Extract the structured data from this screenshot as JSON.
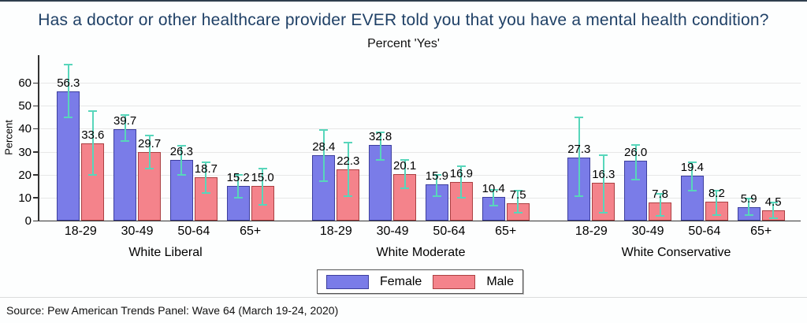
{
  "chart_data": {
    "type": "bar",
    "title": "Has a doctor or other healthcare provider EVER told you that you have a mental health condition?",
    "subtitle": "Percent 'Yes'",
    "ylabel": "Percent",
    "yticks": [
      0,
      10,
      20,
      30,
      40,
      50,
      60
    ],
    "ylim": [
      0,
      72
    ],
    "grid": true,
    "legend_position": "bottom-center",
    "age_categories": [
      "18-29",
      "30-49",
      "50-64",
      "65+"
    ],
    "groups": [
      {
        "label": "White Liberal",
        "series": [
          {
            "name": "Female",
            "values": [
              56.3,
              39.7,
              26.3,
              15.2
            ],
            "ci": [
              [
                45,
                68
              ],
              [
                34.5,
                46
              ],
              [
                20,
                32.5
              ],
              [
                10,
                20
              ]
            ]
          },
          {
            "name": "Male",
            "values": [
              33.6,
              29.7,
              18.7,
              15.0
            ],
            "ci": [
              [
                20,
                47.5
              ],
              [
                22.5,
                37
              ],
              [
                12,
                25.5
              ],
              [
                7,
                22.5
              ]
            ]
          }
        ]
      },
      {
        "label": "White Moderate",
        "series": [
          {
            "name": "Female",
            "values": [
              28.4,
              32.8,
              15.9,
              10.4
            ],
            "ci": [
              [
                17,
                39.5
              ],
              [
                26.5,
                38.5
              ],
              [
                10.5,
                20
              ],
              [
                6.5,
                13.5
              ]
            ]
          },
          {
            "name": "Male",
            "values": [
              22.3,
              20.1,
              16.9,
              7.5
            ],
            "ci": [
              [
                10.5,
                34
              ],
              [
                14,
                26.5
              ],
              [
                10,
                23.5
              ],
              [
                3.5,
                13
              ]
            ]
          }
        ]
      },
      {
        "label": "White Conservative",
        "series": [
          {
            "name": "Female",
            "values": [
              27.3,
              26.0,
              19.4,
              5.9
            ],
            "ci": [
              [
                10.5,
                45
              ],
              [
                18,
                33
              ],
              [
                13,
                25.5
              ],
              [
                2.5,
                9.5
              ]
            ]
          },
          {
            "name": "Male",
            "values": [
              16.3,
              7.8,
              8.2,
              4.5
            ],
            "ci": [
              [
                3.5,
                28.5
              ],
              [
                2,
                11.5
              ],
              [
                2.5,
                13
              ],
              [
                1,
                8
              ]
            ]
          }
        ]
      }
    ],
    "series_colors": {
      "Female": {
        "fill": "#7a7ce8",
        "border": "#3d3f9e"
      },
      "Male": {
        "fill": "#f4838b",
        "border": "#ab4042"
      }
    },
    "error_bar_color": "#58d6bb",
    "source": "Source: Pew American Trends Panel: Wave 64 (March 19-24, 2020)"
  },
  "legend": {
    "female_label": "Female",
    "male_label": "Male"
  }
}
